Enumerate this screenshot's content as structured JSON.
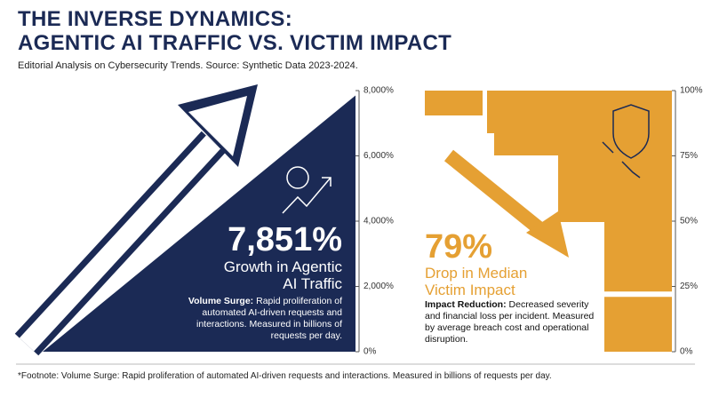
{
  "header": {
    "title": "THE INVERSE DYNAMICS:\nAGENTIC AI TRAFFIC VS. VICTIM IMPACT",
    "subtitle": "Editorial Analysis on Cybersecurity Trends. Source: Synthetic Data 2023-2024.",
    "footnote": "*Footnote: Volume Surge: Rapid proliferation of automated AI-driven requests and interactions. Measured in billions of requests per day."
  },
  "chart_data": [
    {
      "type": "indicator",
      "color": "#1b2a55",
      "values": [
        7851
      ],
      "value_labels": [
        "7,851%"
      ],
      "label": "Growth in Agentic\nAI Traffic",
      "note_title": "Volume Surge:",
      "note": "Rapid proliferation of automated AI-driven requests and interactions. Measured in billions of requests per day.",
      "ylim": [
        0,
        8000
      ],
      "yticks": [
        {
          "value": 0,
          "label": "0%"
        },
        {
          "value": 2000,
          "label": "2,000%"
        },
        {
          "value": 4000,
          "label": "4,000%"
        },
        {
          "value": 6000,
          "label": "6,000%"
        },
        {
          "value": 8000,
          "label": "8,000%"
        }
      ]
    },
    {
      "type": "indicator",
      "color": "#e5a033",
      "values": [
        79
      ],
      "value_labels": [
        "79%"
      ],
      "label": "Drop in Median\nVictim Impact",
      "note_title": "Impact Reduction:",
      "note": "Decreased severity and financial loss per incident. Measured by average breach cost and operational disruption.",
      "ylim": [
        0,
        100
      ],
      "yticks": [
        {
          "value": 0,
          "label": "0%"
        },
        {
          "value": 25,
          "label": "25%"
        },
        {
          "value": 50,
          "label": "50%"
        },
        {
          "value": 75,
          "label": "75%"
        },
        {
          "value": 100,
          "label": "100%"
        }
      ]
    }
  ]
}
